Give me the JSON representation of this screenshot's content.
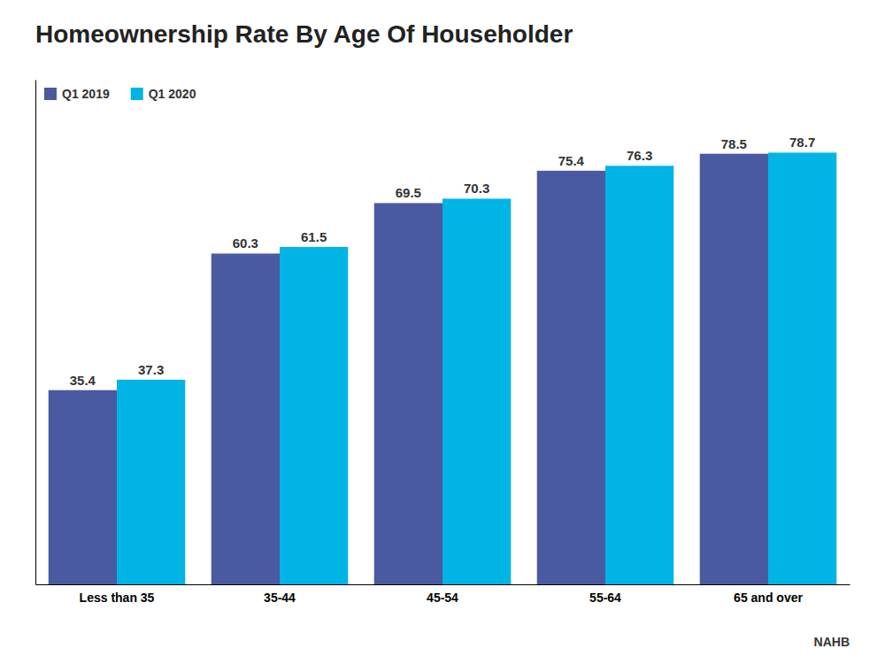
{
  "chart_data": {
    "type": "bar",
    "title": "Homeownership Rate By Age Of Householder",
    "categories": [
      "Less than 35",
      "35-44",
      "45-54",
      "55-64",
      "65 and over"
    ],
    "series": [
      {
        "name": "Q1 2019",
        "color": "#4a5aa0",
        "values": [
          35.4,
          60.3,
          69.5,
          75.4,
          78.5
        ]
      },
      {
        "name": "Q1 2020",
        "color": "#00b4e6",
        "values": [
          37.3,
          61.5,
          70.3,
          76.3,
          78.7
        ]
      }
    ],
    "ylim": [
      0,
      92
    ],
    "annotations": [
      "NAHB"
    ],
    "data_labels": true,
    "tick_labels": "x",
    "legend": "upper left",
    "grid": false
  }
}
